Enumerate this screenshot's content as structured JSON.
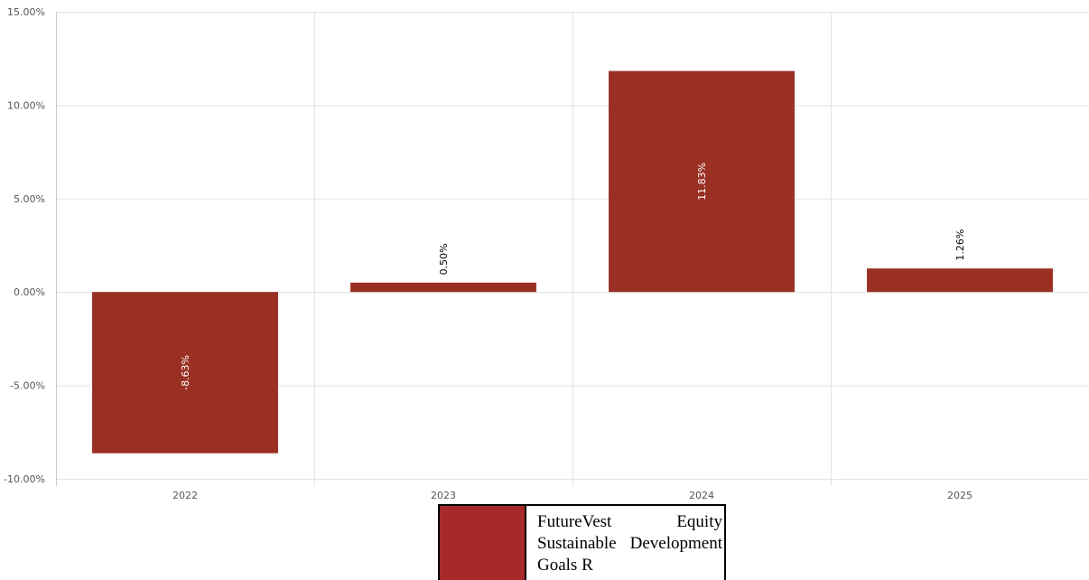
{
  "chart_data": {
    "type": "bar",
    "categories": [
      "2022",
      "2023",
      "2024",
      "2025"
    ],
    "series": [
      {
        "name": "FutureVest Equity Sustainable Development Goals R",
        "values": [
          -8.63,
          0.5,
          11.83,
          1.26
        ],
        "labels": [
          "-8.63%",
          "0.50%",
          "11.83%",
          "1.26%"
        ],
        "color": "#9a3024"
      }
    ],
    "yticks": [
      "15.00%",
      "10.00%",
      "5.00%",
      "0.00%",
      "-5.00%",
      "-10.00%"
    ],
    "ylim": [
      -10,
      15
    ],
    "grid": true,
    "legend_position": "bottom-center"
  },
  "legend": {
    "swatch_color": "#a82a28",
    "label": "FutureVest Equity Sustainable Development Goals R"
  }
}
